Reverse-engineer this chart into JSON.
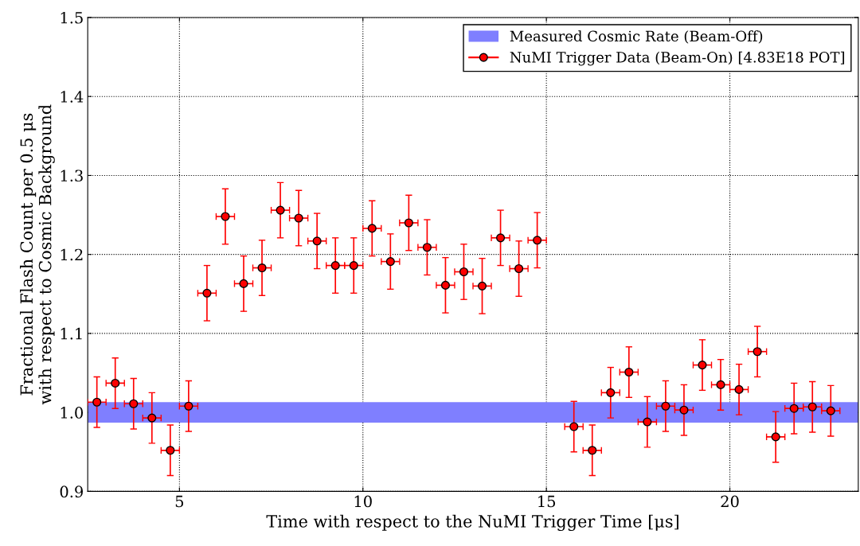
{
  "chart_data": {
    "type": "scatter",
    "xlabel": "Time with respect to the NuMI Trigger Time [μs]",
    "ylabel": "Fractional Flash Count per 0.5 μs\nwith respect to Cosmic Background",
    "xlim": [
      2.5,
      23.5
    ],
    "xticks": [
      5,
      10,
      15,
      20
    ],
    "ylim": [
      0.9,
      1.5
    ],
    "yticks": [
      {
        "value": 0.9,
        "label": "0.9"
      },
      {
        "value": 1.0,
        "label": "1.0"
      },
      {
        "value": 1.1,
        "label": "1.1"
      },
      {
        "value": 1.2,
        "label": "1.2"
      },
      {
        "value": 1.3,
        "label": "1.3"
      },
      {
        "value": 1.4,
        "label": "1.4"
      },
      {
        "value": 1.5,
        "label": "1.5"
      }
    ],
    "grid": true,
    "legend": "top right",
    "marker": "circle",
    "bands": [
      {
        "axis": "y",
        "from": 0.987,
        "to": 1.013,
        "label": "Measured Cosmic Rate (Beam-Off)",
        "color": "#7f7fff"
      }
    ],
    "series": [
      {
        "name": "NuMI Trigger Data (Beam-On) [4.83E18 POT]",
        "color": "#ff0000",
        "x": [
          2.75,
          3.25,
          3.75,
          4.25,
          4.75,
          5.25,
          5.75,
          6.25,
          6.75,
          7.25,
          7.75,
          8.25,
          8.75,
          9.25,
          9.75,
          10.25,
          10.75,
          11.25,
          11.75,
          12.25,
          12.75,
          13.25,
          13.75,
          14.25,
          14.75,
          15.25,
          15.75,
          16.25,
          16.75,
          17.25,
          17.75,
          18.25,
          18.75,
          19.25,
          19.75,
          20.25,
          20.75,
          21.25,
          21.75,
          22.25,
          22.75
        ],
        "values": [
          1.013,
          1.037,
          1.011,
          0.993,
          0.952,
          1.008,
          1.151,
          1.248,
          1.163,
          1.183,
          1.256,
          1.246,
          1.217,
          1.186,
          1.186,
          1.233,
          1.191,
          1.24,
          1.209,
          1.161,
          1.178,
          1.16,
          1.221,
          1.182,
          1.218,
          null,
          0.982,
          0.952,
          1.025,
          1.051,
          0.988,
          1.008,
          1.003,
          1.06,
          1.035,
          1.029,
          1.077,
          0.969,
          1.005,
          1.007,
          1.002
        ],
        "errors": [
          0.032,
          0.032,
          0.032,
          0.032,
          0.032,
          0.032,
          0.035,
          0.035,
          0.035,
          0.035,
          0.035,
          0.035,
          0.035,
          0.035,
          0.035,
          0.035,
          0.035,
          0.035,
          0.035,
          0.035,
          0.035,
          0.035,
          0.035,
          0.035,
          0.035,
          null,
          0.032,
          0.032,
          0.032,
          0.032,
          0.032,
          0.032,
          0.032,
          0.032,
          0.032,
          0.032,
          0.032,
          0.032,
          0.032,
          0.032,
          0.032
        ],
        "xerrors": [
          0.25,
          0.25,
          0.25,
          0.25,
          0.25,
          0.25,
          0.25,
          0.25,
          0.25,
          0.25,
          0.25,
          0.25,
          0.25,
          0.25,
          0.25,
          0.25,
          0.25,
          0.25,
          0.25,
          0.25,
          0.25,
          0.25,
          0.25,
          0.25,
          0.25,
          null,
          0.25,
          0.25,
          0.25,
          0.25,
          0.25,
          0.25,
          0.25,
          0.25,
          0.25,
          0.25,
          0.25,
          0.25,
          0.25,
          0.25,
          0.25
        ]
      }
    ]
  }
}
